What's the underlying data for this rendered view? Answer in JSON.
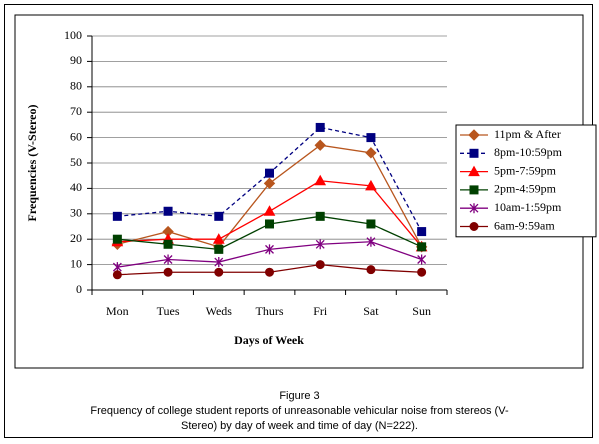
{
  "chart_data": {
    "type": "line",
    "xlabel": "Days of Week",
    "ylabel": "Frequencies (V-Stereo)",
    "categories": [
      "Mon",
      "Tues",
      "Weds",
      "Thurs",
      "Fri",
      "Sat",
      "Sun"
    ],
    "series": [
      {
        "name": "11pm & After",
        "color": "#b8561e",
        "marker": "diamond",
        "line_style": "solid",
        "values": [
          18,
          23,
          17,
          42,
          57,
          54,
          17
        ]
      },
      {
        "name": "8pm-10:59pm",
        "color": "#000080",
        "marker": "square",
        "line_style": "dotted",
        "values": [
          29,
          31,
          29,
          46,
          64,
          60,
          23
        ]
      },
      {
        "name": "5pm-7:59pm",
        "color": "#ff0000",
        "marker": "triangle",
        "line_style": "solid",
        "values": [
          19,
          20,
          20,
          31,
          43,
          41,
          17
        ]
      },
      {
        "name": "2pm-4:59pm",
        "color": "#004000",
        "marker": "square",
        "line_style": "solid",
        "values": [
          20,
          18,
          16,
          26,
          29,
          26,
          17
        ]
      },
      {
        "name": "10am-1:59pm",
        "color": "#800080",
        "marker": "star",
        "line_style": "solid",
        "values": [
          9,
          12,
          11,
          16,
          18,
          19,
          12
        ]
      },
      {
        "name": "6am-9:59am",
        "color": "#800000",
        "marker": "circle",
        "line_style": "solid",
        "values": [
          6,
          7,
          7,
          7,
          10,
          8,
          7
        ]
      }
    ],
    "ylim": [
      0,
      100
    ],
    "yticks": [
      0,
      10,
      20,
      30,
      40,
      50,
      60,
      70,
      80,
      90,
      100
    ],
    "grid": true,
    "legend": "right",
    "figure_label": "Figure 3",
    "caption": "Frequency of college student reports of unreasonable vehicular noise from stereos (V-Stereo) by day of week and time of day (N=222)."
  }
}
